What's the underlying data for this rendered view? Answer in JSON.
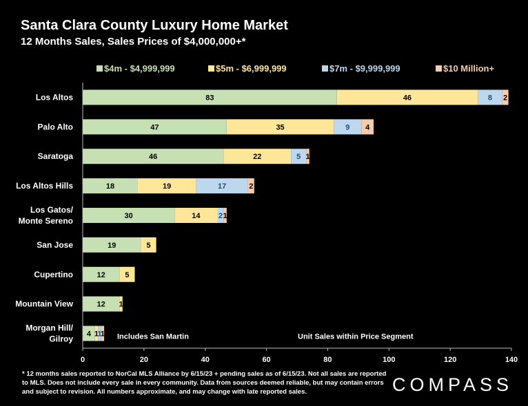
{
  "header": {
    "title": "Santa Clara County Luxury Home Market",
    "subtitle": "12 Months Sales, Sales Prices of $4,000,000+*"
  },
  "chart_data": {
    "type": "bar",
    "orientation": "horizontal",
    "stacked": true,
    "categories": [
      "Los Altos",
      "Palo Alto",
      "Saratoga",
      "Los Altos Hills",
      "Los Gatos/\nMonte Sereno",
      "San Jose",
      "Cupertino",
      "Mountain View",
      "Morgan Hill/\nGilroy"
    ],
    "series": [
      {
        "name": "$4m - $4,999,999",
        "color": "#c6e0b4",
        "values": [
          83,
          47,
          46,
          18,
          30,
          19,
          12,
          12,
          4
        ]
      },
      {
        "name": "$5m - $6,999,999",
        "color": "#ffe699",
        "values": [
          46,
          35,
          22,
          19,
          14,
          5,
          5,
          1,
          1
        ]
      },
      {
        "name": "$7m - $9,999,999",
        "color": "#bdd7ee",
        "values": [
          8,
          9,
          5,
          17,
          2,
          0,
          0,
          0,
          1
        ]
      },
      {
        "name": "$10 Million+",
        "color": "#f8cbad",
        "values": [
          2,
          4,
          1,
          2,
          1,
          0,
          0,
          0,
          1
        ]
      }
    ],
    "xlim": [
      0,
      140
    ],
    "xticks": [
      0,
      20,
      40,
      60,
      80,
      100,
      120,
      140
    ],
    "legend_position": "top",
    "grid": false,
    "annotations": [
      {
        "text": "Includes San Martin"
      },
      {
        "text": "Unit Sales within Price Segment"
      }
    ]
  },
  "footer": {
    "footnote": "* 12 months sales reported to NorCal MLS Alliance by 6/15/23 + pending sales as of 6/15/23. Not all sales are reported to MLS. Does not include every sale in every community. Data from sources deemed reliable, but may contain errors and subject to revision. All numbers approximate, and may change with late reported sales.",
    "brand": "COMPASS"
  }
}
